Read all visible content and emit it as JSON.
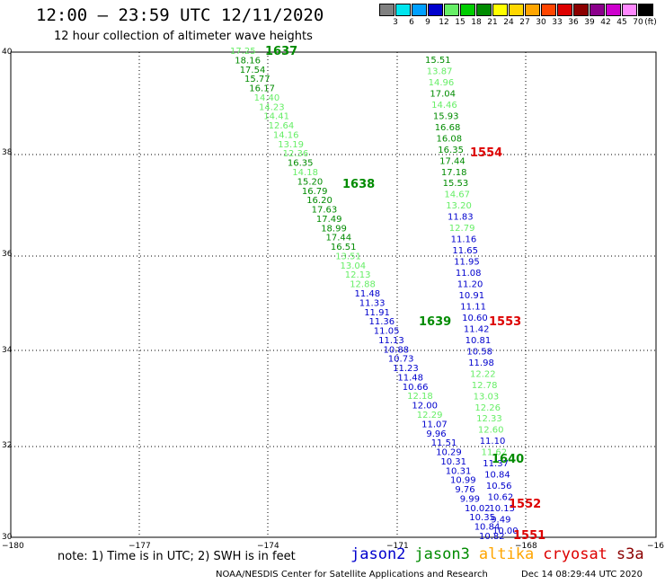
{
  "header": {
    "title": "12:00 — 23:59 UTC 12/11/2020",
    "subtitle": "12 hour collection of altimeter wave heights"
  },
  "legend": {
    "unit": "(ft)",
    "bins": [
      {
        "label": "3",
        "color": "#808080"
      },
      {
        "label": "6",
        "color": "#00e5ee"
      },
      {
        "label": "9",
        "color": "#00a0ff"
      },
      {
        "label": "12",
        "color": "#0000cd"
      },
      {
        "label": "15",
        "color": "#66ee66"
      },
      {
        "label": "18",
        "color": "#00cd00"
      },
      {
        "label": "21",
        "color": "#008b00"
      },
      {
        "label": "24",
        "color": "#ffff00"
      },
      {
        "label": "27",
        "color": "#ffd700"
      },
      {
        "label": "30",
        "color": "#ffa500"
      },
      {
        "label": "33",
        "color": "#ff4500"
      },
      {
        "label": "36",
        "color": "#dd0000"
      },
      {
        "label": "39",
        "color": "#8b0000"
      },
      {
        "label": "42",
        "color": "#8b008b"
      },
      {
        "label": "45",
        "color": "#cd00cd"
      },
      {
        "label": "70",
        "color": "#ff88ff"
      },
      {
        "label": "",
        "color": "#000000"
      }
    ]
  },
  "axes": {
    "lat_ticks": [
      "40",
      "38",
      "36",
      "34",
      "32",
      "30"
    ],
    "lon_ticks": [
      "−180",
      "−177",
      "−174",
      "−171",
      "−168",
      "−16"
    ]
  },
  "colors": {
    "dark_green": "#008b00",
    "light_green": "#66ee66",
    "dark_blue": "#0000cd",
    "red": "#dd0000",
    "grid": "#000000"
  },
  "passes": [
    {
      "label": "1637",
      "color": "#008b00"
    },
    {
      "label": "1638",
      "color": "#008b00"
    },
    {
      "label": "1639",
      "color": "#008b00"
    },
    {
      "label": "1640",
      "color": "#008b00"
    },
    {
      "label": "1554",
      "color": "#dd0000"
    },
    {
      "label": "1553",
      "color": "#dd0000"
    },
    {
      "label": "1552",
      "color": "#dd0000"
    },
    {
      "label": "1551",
      "color": "#dd0000"
    }
  ],
  "track_west": [
    {
      "v": "17.25",
      "c": "l"
    },
    {
      "v": "18.16",
      "c": "d"
    },
    {
      "v": "17.54",
      "c": "d"
    },
    {
      "v": "15.77",
      "c": "d"
    },
    {
      "v": "16.17",
      "c": "d"
    },
    {
      "v": "14.40",
      "c": "l"
    },
    {
      "v": "14.23",
      "c": "l"
    },
    {
      "v": "14.41",
      "c": "l"
    },
    {
      "v": "12.64",
      "c": "l"
    },
    {
      "v": "14.16",
      "c": "l"
    },
    {
      "v": "13.19",
      "c": "l"
    },
    {
      "v": "12.36",
      "c": "l"
    },
    {
      "v": "16.35",
      "c": "d"
    },
    {
      "v": "14.18",
      "c": "l"
    },
    {
      "v": "15.20",
      "c": "d"
    },
    {
      "v": "16.79",
      "c": "d"
    },
    {
      "v": "16.20",
      "c": "d"
    },
    {
      "v": "17.63",
      "c": "d"
    },
    {
      "v": "17.49",
      "c": "d"
    },
    {
      "v": "18.99",
      "c": "d"
    },
    {
      "v": "17.44",
      "c": "d"
    },
    {
      "v": "16.51",
      "c": "d"
    },
    {
      "v": "13.51",
      "c": "l"
    },
    {
      "v": "13.04",
      "c": "l"
    },
    {
      "v": "12.13",
      "c": "l"
    },
    {
      "v": "12.88",
      "c": "l"
    },
    {
      "v": "11.48",
      "c": "b"
    },
    {
      "v": "11.33",
      "c": "b"
    },
    {
      "v": "11.91",
      "c": "b"
    },
    {
      "v": "11.36",
      "c": "b"
    },
    {
      "v": "11.05",
      "c": "b"
    },
    {
      "v": "11.13",
      "c": "b"
    },
    {
      "v": "10.88",
      "c": "b"
    },
    {
      "v": "10.73",
      "c": "b"
    },
    {
      "v": "11.23",
      "c": "b"
    },
    {
      "v": "11.48",
      "c": "b"
    },
    {
      "v": "10.66",
      "c": "b"
    },
    {
      "v": "12.18",
      "c": "l"
    },
    {
      "v": "12.00",
      "c": "b"
    },
    {
      "v": "12.29",
      "c": "l"
    },
    {
      "v": "11.07",
      "c": "b"
    },
    {
      "v": "9.96",
      "c": "b"
    },
    {
      "v": "11.51",
      "c": "b"
    },
    {
      "v": "10.29",
      "c": "b"
    },
    {
      "v": "10.31",
      "c": "b"
    },
    {
      "v": "10.31",
      "c": "b"
    },
    {
      "v": "10.99",
      "c": "b"
    },
    {
      "v": "9.76",
      "c": "b"
    },
    {
      "v": "9.99",
      "c": "b"
    },
    {
      "v": "10.02",
      "c": "b"
    },
    {
      "v": "10.35",
      "c": "b"
    },
    {
      "v": "10.84",
      "c": "b"
    },
    {
      "v": "10.82",
      "c": "b"
    }
  ],
  "track_east": [
    {
      "v": "15.51",
      "c": "d"
    },
    {
      "v": "13.87",
      "c": "l"
    },
    {
      "v": "14.96",
      "c": "l"
    },
    {
      "v": "17.04",
      "c": "d"
    },
    {
      "v": "14.46",
      "c": "l"
    },
    {
      "v": "15.93",
      "c": "d"
    },
    {
      "v": "16.68",
      "c": "d"
    },
    {
      "v": "16.08",
      "c": "d"
    },
    {
      "v": "16.35",
      "c": "d"
    },
    {
      "v": "17.44",
      "c": "d"
    },
    {
      "v": "17.18",
      "c": "d"
    },
    {
      "v": "15.53",
      "c": "d"
    },
    {
      "v": "14.67",
      "c": "l"
    },
    {
      "v": "13.20",
      "c": "l"
    },
    {
      "v": "11.83",
      "c": "b"
    },
    {
      "v": "12.79",
      "c": "l"
    },
    {
      "v": "11.16",
      "c": "b"
    },
    {
      "v": "11.65",
      "c": "b"
    },
    {
      "v": "11.95",
      "c": "b"
    },
    {
      "v": "11.08",
      "c": "b"
    },
    {
      "v": "11.20",
      "c": "b"
    },
    {
      "v": "10.91",
      "c": "b"
    },
    {
      "v": "11.11",
      "c": "b"
    },
    {
      "v": "10.60",
      "c": "b"
    },
    {
      "v": "11.42",
      "c": "b"
    },
    {
      "v": "10.81",
      "c": "b"
    },
    {
      "v": "10.58",
      "c": "b"
    },
    {
      "v": "11.98",
      "c": "b"
    },
    {
      "v": "12.22",
      "c": "l"
    },
    {
      "v": "12.78",
      "c": "l"
    },
    {
      "v": "13.03",
      "c": "l"
    },
    {
      "v": "12.26",
      "c": "l"
    },
    {
      "v": "12.33",
      "c": "l"
    },
    {
      "v": "12.60",
      "c": "l"
    },
    {
      "v": "11.10",
      "c": "b"
    },
    {
      "v": "11.62",
      "c": "l"
    },
    {
      "v": "11.37",
      "c": "b"
    },
    {
      "v": "10.84",
      "c": "b"
    },
    {
      "v": "10.56",
      "c": "b"
    },
    {
      "v": "10.62",
      "c": "b"
    },
    {
      "v": "10.15",
      "c": "b"
    },
    {
      "v": "9.49",
      "c": "b"
    },
    {
      "v": "10.00",
      "c": "b"
    }
  ],
  "footer": {
    "note": "note:  1) Time is in UTC; 2) SWH is in feet",
    "satellites": [
      {
        "name": "jason2",
        "color": "#0000cd"
      },
      {
        "name": "jason3",
        "color": "#008b00"
      },
      {
        "name": "altika",
        "color": "#ffa500"
      },
      {
        "name": "cryosat",
        "color": "#dd0000"
      },
      {
        "name": "s3a",
        "color": "#8b0000"
      }
    ],
    "credit": "NOAA/NESDIS Center for Satellite Applications and Research",
    "timestamp": "Dec 14 08:29:44 UTC 2020"
  }
}
